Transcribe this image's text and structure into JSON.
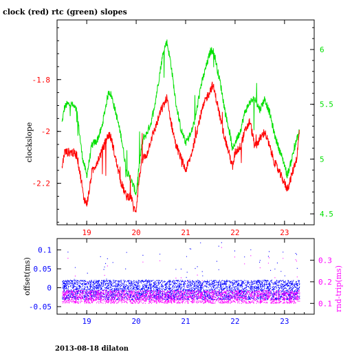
{
  "title": "clock (red) rtc (green) slopes",
  "footer": "2013-08-18 dilaton",
  "colors": {
    "red": "#ff0000",
    "green": "#00e000",
    "blue": "#0000ff",
    "magenta": "#ff00ff",
    "frame": "#000000"
  },
  "chart_data": [
    {
      "type": "line",
      "ylabel": "clockslope",
      "xlim": [
        18.4,
        23.6
      ],
      "ylim": [
        -2.36,
        -1.57
      ],
      "y2lim": [
        4.4,
        6.27
      ],
      "x_ticks": [
        "19",
        "20",
        "21",
        "22",
        "23"
      ],
      "y_ticks": [
        "-1.8",
        "-2",
        "-2.2"
      ],
      "y2_ticks": [
        "6",
        "5.5",
        "5",
        "4.5"
      ],
      "grid": false,
      "series": [
        {
          "name": "clock",
          "axis": "left",
          "x": [
            18.5,
            18.55,
            18.6,
            18.7,
            18.8,
            18.9,
            18.93,
            19.0,
            19.05,
            19.1,
            19.15,
            19.2,
            19.3,
            19.4,
            19.45,
            19.5,
            19.6,
            19.7,
            19.8,
            19.9,
            19.95,
            20.0,
            20.05,
            20.1,
            20.15,
            20.2,
            20.3,
            20.4,
            20.5,
            20.55,
            20.6,
            20.62,
            20.7,
            20.8,
            20.9,
            21.0,
            21.1,
            21.2,
            21.3,
            21.4,
            21.5,
            21.55,
            21.6,
            21.65,
            21.7,
            21.8,
            21.9,
            21.95,
            22.0,
            22.1,
            22.2,
            22.3,
            22.4,
            22.5,
            22.6,
            22.7,
            22.8,
            22.9,
            23.0,
            23.05,
            23.1,
            23.2,
            23.25,
            23.3
          ],
          "y": [
            -2.14,
            -2.08,
            -2.08,
            -2.08,
            -2.09,
            -2.2,
            -2.25,
            -2.28,
            -2.23,
            -2.16,
            -2.14,
            -2.12,
            -2.08,
            -2.03,
            -2.01,
            -2.03,
            -2.12,
            -2.2,
            -2.25,
            -2.25,
            -2.3,
            -2.3,
            -2.2,
            -2.13,
            -2.1,
            -2.1,
            -2.03,
            -1.98,
            -1.92,
            -1.9,
            -1.88,
            -1.87,
            -1.96,
            -2.05,
            -2.1,
            -2.15,
            -2.1,
            -2.02,
            -1.94,
            -1.88,
            -1.84,
            -1.82,
            -1.86,
            -1.9,
            -1.95,
            -2.03,
            -2.1,
            -2.14,
            -2.08,
            -2.06,
            -2.0,
            -1.96,
            -2.06,
            -2.03,
            -2.0,
            -2.06,
            -2.12,
            -2.16,
            -2.2,
            -2.22,
            -2.2,
            -2.13,
            -2.1,
            -2.0
          ]
        },
        {
          "name": "rtc",
          "axis": "right",
          "x": [
            18.5,
            18.55,
            18.6,
            18.7,
            18.8,
            18.9,
            18.93,
            19.0,
            19.05,
            19.1,
            19.15,
            19.2,
            19.3,
            19.4,
            19.45,
            19.5,
            19.6,
            19.7,
            19.8,
            19.9,
            19.95,
            20.0,
            20.05,
            20.1,
            20.15,
            20.2,
            20.3,
            20.4,
            20.5,
            20.55,
            20.6,
            20.62,
            20.7,
            20.8,
            20.9,
            21.0,
            21.1,
            21.2,
            21.3,
            21.4,
            21.5,
            21.55,
            21.6,
            21.65,
            21.7,
            21.8,
            21.9,
            21.95,
            22.0,
            22.1,
            22.2,
            22.3,
            22.4,
            22.5,
            22.6,
            22.7,
            22.8,
            22.9,
            23.0,
            23.05,
            23.1,
            23.2,
            23.25,
            23.3
          ],
          "y": [
            5.33,
            5.47,
            5.5,
            5.5,
            5.44,
            5.06,
            4.98,
            4.85,
            4.98,
            5.12,
            5.15,
            5.16,
            5.28,
            5.52,
            5.62,
            5.58,
            5.4,
            5.2,
            4.9,
            4.8,
            4.75,
            4.68,
            4.9,
            5.08,
            5.2,
            5.22,
            5.33,
            5.56,
            5.85,
            5.98,
            6.05,
            6.07,
            5.88,
            5.52,
            5.28,
            5.15,
            5.22,
            5.38,
            5.65,
            5.82,
            5.98,
            6.0,
            5.92,
            5.8,
            5.7,
            5.43,
            5.22,
            5.08,
            5.15,
            5.25,
            5.43,
            5.52,
            5.55,
            5.45,
            5.55,
            5.42,
            5.22,
            5.08,
            4.95,
            4.85,
            4.92,
            5.1,
            5.18,
            5.25
          ]
        }
      ]
    },
    {
      "type": "scatter",
      "ylabel": "offset(ms)",
      "y2label": "rnd-trip(ms)",
      "xlim": [
        18.4,
        23.6
      ],
      "ylim": [
        -0.07,
        0.13
      ],
      "y2lim": [
        0.05,
        0.4
      ],
      "x_ticks": [
        "19",
        "20",
        "21",
        "22",
        "23"
      ],
      "y_ticks": [
        "0.1",
        "0.05",
        "0",
        "-0.05"
      ],
      "y2_ticks": [
        "0.3",
        "0.2",
        "0.1"
      ],
      "grid": false,
      "series": [
        {
          "name": "offset",
          "axis": "left",
          "x_range": [
            18.5,
            23.3
          ],
          "y_band": [
            -0.032,
            0.02
          ],
          "outliers_up_to": 0.12
        },
        {
          "name": "rnd-trip",
          "axis": "right",
          "x_range": [
            18.5,
            23.3
          ],
          "y_band": [
            0.1,
            0.16
          ],
          "outliers_up_to": 0.36
        }
      ]
    }
  ]
}
